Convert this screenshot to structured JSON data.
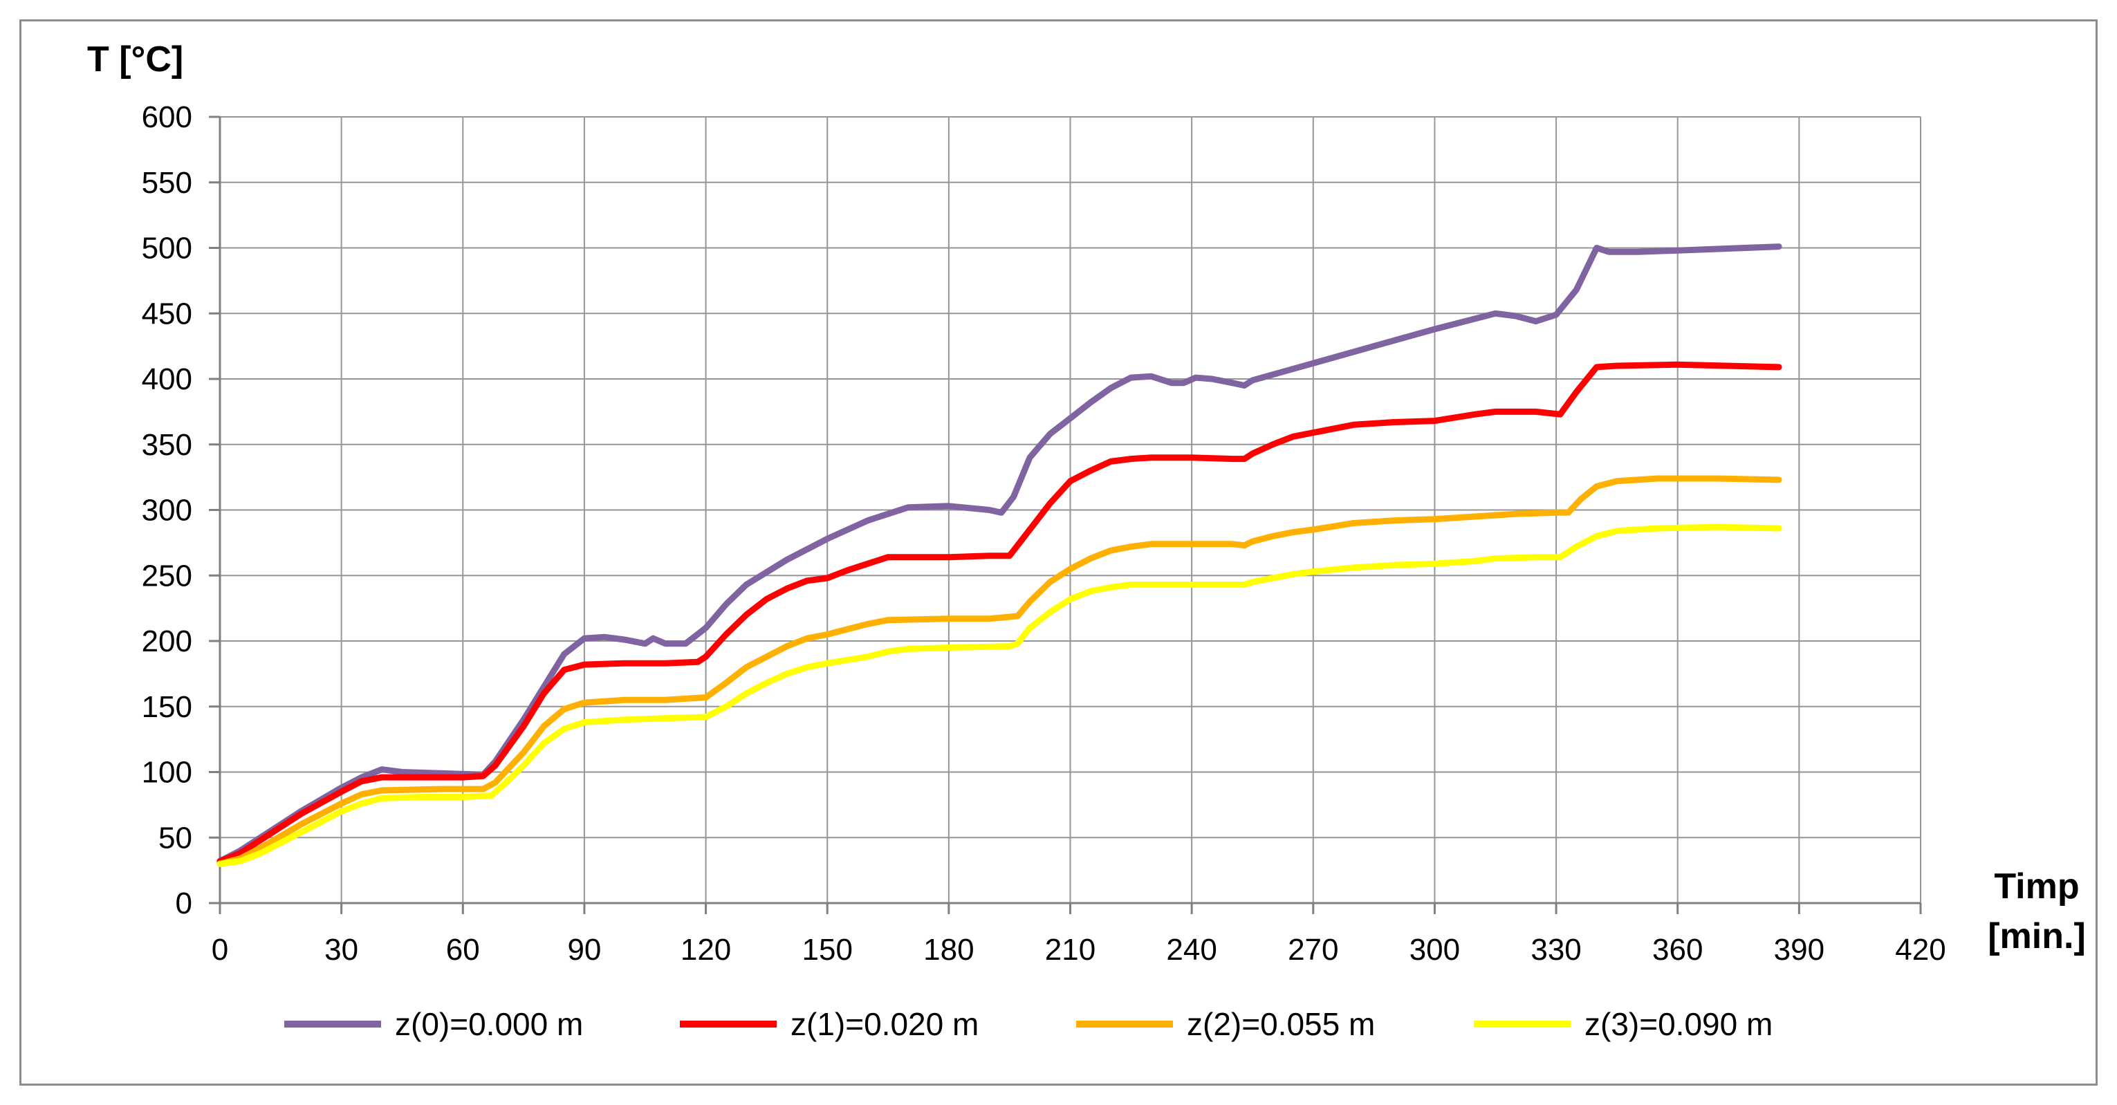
{
  "chart_data": {
    "type": "line",
    "ylabel": "T [°C]",
    "xlabel": [
      "Timp",
      "[min.]"
    ],
    "xlim": [
      0,
      420
    ],
    "ylim": [
      0,
      600
    ],
    "x_ticks": [
      0,
      30,
      60,
      90,
      120,
      150,
      180,
      210,
      240,
      270,
      300,
      330,
      360,
      390,
      420
    ],
    "y_ticks": [
      0,
      50,
      100,
      150,
      200,
      250,
      300,
      350,
      400,
      450,
      500,
      550,
      600
    ],
    "grid": true,
    "legend_position": "bottom",
    "series": [
      {
        "name": "z(0)=0.000 m",
        "color": "#8064A2",
        "points": [
          [
            0,
            32
          ],
          [
            5,
            40
          ],
          [
            10,
            50
          ],
          [
            20,
            70
          ],
          [
            30,
            88
          ],
          [
            35,
            96
          ],
          [
            40,
            102
          ],
          [
            45,
            100
          ],
          [
            55,
            99
          ],
          [
            65,
            98
          ],
          [
            68,
            108
          ],
          [
            75,
            140
          ],
          [
            80,
            165
          ],
          [
            85,
            190
          ],
          [
            90,
            202
          ],
          [
            95,
            203
          ],
          [
            100,
            201
          ],
          [
            105,
            198
          ],
          [
            107,
            202
          ],
          [
            110,
            198
          ],
          [
            115,
            198
          ],
          [
            120,
            210
          ],
          [
            125,
            228
          ],
          [
            130,
            243
          ],
          [
            140,
            262
          ],
          [
            150,
            278
          ],
          [
            160,
            292
          ],
          [
            170,
            302
          ],
          [
            180,
            303
          ],
          [
            190,
            300
          ],
          [
            193,
            298
          ],
          [
            196,
            310
          ],
          [
            200,
            340
          ],
          [
            205,
            358
          ],
          [
            210,
            370
          ],
          [
            215,
            382
          ],
          [
            220,
            393
          ],
          [
            225,
            401
          ],
          [
            230,
            402
          ],
          [
            235,
            397
          ],
          [
            238,
            397
          ],
          [
            241,
            401
          ],
          [
            245,
            400
          ],
          [
            250,
            397
          ],
          [
            253,
            395
          ],
          [
            255,
            399
          ],
          [
            270,
            412
          ],
          [
            285,
            425
          ],
          [
            300,
            438
          ],
          [
            315,
            450
          ],
          [
            320,
            448
          ],
          [
            325,
            444
          ],
          [
            330,
            449
          ],
          [
            335,
            468
          ],
          [
            340,
            500
          ],
          [
            343,
            497
          ],
          [
            350,
            497
          ],
          [
            360,
            498
          ],
          [
            385,
            501
          ]
        ]
      },
      {
        "name": "z(1)=0.020 m",
        "color": "#FF0000",
        "points": [
          [
            0,
            32
          ],
          [
            5,
            38
          ],
          [
            10,
            48
          ],
          [
            20,
            68
          ],
          [
            30,
            85
          ],
          [
            35,
            93
          ],
          [
            40,
            96
          ],
          [
            50,
            96
          ],
          [
            60,
            96
          ],
          [
            65,
            97
          ],
          [
            68,
            105
          ],
          [
            75,
            135
          ],
          [
            80,
            160
          ],
          [
            85,
            178
          ],
          [
            90,
            182
          ],
          [
            100,
            183
          ],
          [
            110,
            183
          ],
          [
            118,
            184
          ],
          [
            120,
            188
          ],
          [
            125,
            205
          ],
          [
            130,
            220
          ],
          [
            135,
            232
          ],
          [
            140,
            240
          ],
          [
            145,
            246
          ],
          [
            150,
            248
          ],
          [
            155,
            254
          ],
          [
            160,
            259
          ],
          [
            165,
            264
          ],
          [
            180,
            264
          ],
          [
            190,
            265
          ],
          [
            195,
            265
          ],
          [
            200,
            285
          ],
          [
            205,
            305
          ],
          [
            210,
            322
          ],
          [
            215,
            330
          ],
          [
            220,
            337
          ],
          [
            225,
            339
          ],
          [
            230,
            340
          ],
          [
            240,
            340
          ],
          [
            250,
            339
          ],
          [
            253,
            339
          ],
          [
            255,
            343
          ],
          [
            260,
            350
          ],
          [
            265,
            356
          ],
          [
            270,
            359
          ],
          [
            280,
            365
          ],
          [
            290,
            367
          ],
          [
            300,
            368
          ],
          [
            310,
            373
          ],
          [
            315,
            375
          ],
          [
            325,
            375
          ],
          [
            331,
            373
          ],
          [
            335,
            390
          ],
          [
            340,
            409
          ],
          [
            345,
            410
          ],
          [
            360,
            411
          ],
          [
            385,
            409
          ]
        ]
      },
      {
        "name": "z(2)=0.055 m",
        "color": "#FFB000",
        "points": [
          [
            0,
            30
          ],
          [
            5,
            34
          ],
          [
            10,
            42
          ],
          [
            20,
            60
          ],
          [
            30,
            76
          ],
          [
            35,
            83
          ],
          [
            40,
            86
          ],
          [
            55,
            87
          ],
          [
            65,
            87
          ],
          [
            68,
            92
          ],
          [
            75,
            115
          ],
          [
            80,
            135
          ],
          [
            85,
            148
          ],
          [
            90,
            153
          ],
          [
            100,
            155
          ],
          [
            110,
            155
          ],
          [
            120,
            157
          ],
          [
            125,
            168
          ],
          [
            130,
            180
          ],
          [
            140,
            196
          ],
          [
            145,
            202
          ],
          [
            150,
            205
          ],
          [
            155,
            209
          ],
          [
            160,
            213
          ],
          [
            165,
            216
          ],
          [
            180,
            217
          ],
          [
            190,
            217
          ],
          [
            197,
            219
          ],
          [
            200,
            230
          ],
          [
            205,
            245
          ],
          [
            210,
            255
          ],
          [
            215,
            263
          ],
          [
            220,
            269
          ],
          [
            225,
            272
          ],
          [
            230,
            274
          ],
          [
            240,
            274
          ],
          [
            250,
            274
          ],
          [
            253,
            273
          ],
          [
            255,
            276
          ],
          [
            260,
            280
          ],
          [
            265,
            283
          ],
          [
            270,
            285
          ],
          [
            280,
            290
          ],
          [
            290,
            292
          ],
          [
            300,
            293
          ],
          [
            310,
            295
          ],
          [
            320,
            297
          ],
          [
            330,
            298
          ],
          [
            333,
            298
          ],
          [
            336,
            308
          ],
          [
            340,
            318
          ],
          [
            345,
            322
          ],
          [
            355,
            324
          ],
          [
            370,
            324
          ],
          [
            385,
            323
          ]
        ]
      },
      {
        "name": "z(3)=0.090 m",
        "color": "#FFFF00",
        "points": [
          [
            0,
            30
          ],
          [
            5,
            32
          ],
          [
            10,
            38
          ],
          [
            20,
            54
          ],
          [
            30,
            70
          ],
          [
            35,
            76
          ],
          [
            40,
            80
          ],
          [
            50,
            81
          ],
          [
            60,
            81
          ],
          [
            67,
            82
          ],
          [
            70,
            90
          ],
          [
            75,
            105
          ],
          [
            80,
            122
          ],
          [
            85,
            133
          ],
          [
            90,
            138
          ],
          [
            100,
            140
          ],
          [
            110,
            141
          ],
          [
            120,
            142
          ],
          [
            125,
            150
          ],
          [
            130,
            160
          ],
          [
            135,
            168
          ],
          [
            140,
            175
          ],
          [
            145,
            180
          ],
          [
            150,
            183
          ],
          [
            160,
            188
          ],
          [
            165,
            192
          ],
          [
            170,
            194
          ],
          [
            180,
            195
          ],
          [
            195,
            196
          ],
          [
            197,
            198
          ],
          [
            200,
            210
          ],
          [
            205,
            222
          ],
          [
            210,
            232
          ],
          [
            215,
            238
          ],
          [
            220,
            241
          ],
          [
            225,
            243
          ],
          [
            240,
            243
          ],
          [
            253,
            243
          ],
          [
            255,
            245
          ],
          [
            260,
            248
          ],
          [
            265,
            251
          ],
          [
            270,
            253
          ],
          [
            280,
            256
          ],
          [
            290,
            258
          ],
          [
            300,
            259
          ],
          [
            310,
            261
          ],
          [
            315,
            263
          ],
          [
            325,
            264
          ],
          [
            331,
            264
          ],
          [
            335,
            272
          ],
          [
            340,
            280
          ],
          [
            345,
            284
          ],
          [
            355,
            286
          ],
          [
            370,
            287
          ],
          [
            385,
            286
          ]
        ]
      }
    ]
  }
}
